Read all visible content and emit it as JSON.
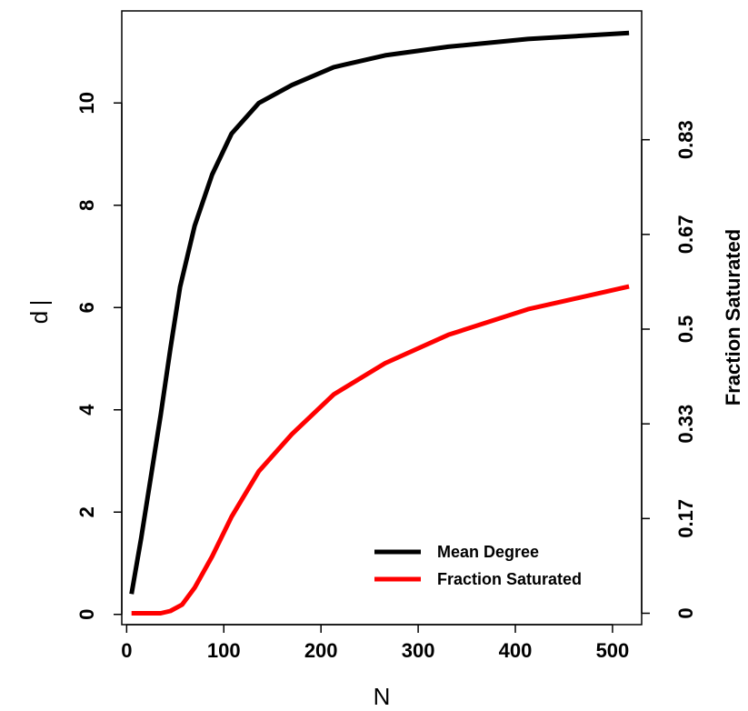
{
  "chart_data": {
    "type": "line",
    "xlabel": "N",
    "ylabel": "d",
    "ylabel_right": "Fraction Saturated",
    "xlim": [
      -5,
      530
    ],
    "ylim": [
      -0.2,
      11.8
    ],
    "ylim_right": [
      -0.02,
      1.06
    ],
    "x_ticks": [
      0,
      100,
      200,
      300,
      400,
      500
    ],
    "y_ticks": [
      0,
      2,
      4,
      6,
      8,
      10
    ],
    "y_ticks_right": [
      {
        "value": 0,
        "label": "0"
      },
      {
        "value": 0.1667,
        "label": "0.17"
      },
      {
        "value": 0.3333,
        "label": "0.33"
      },
      {
        "value": 0.5,
        "label": "0.5"
      },
      {
        "value": 0.6667,
        "label": "0.67"
      },
      {
        "value": 0.8333,
        "label": "0.83"
      }
    ],
    "grid": false,
    "legend_position": "bottom-right",
    "series": [
      {
        "name": "Mean Degree",
        "axis": "left",
        "color": "#000000",
        "x": [
          5,
          15,
          25,
          35,
          45,
          55,
          70,
          88,
          108,
          136,
          170,
          213,
          266,
          331,
          413,
          517
        ],
        "y": [
          0.4,
          1.5,
          2.7,
          3.9,
          5.2,
          6.4,
          7.6,
          8.6,
          9.4,
          10.0,
          10.35,
          10.7,
          10.93,
          11.1,
          11.25,
          11.37
        ]
      },
      {
        "name": "Fraction Saturated",
        "axis": "right",
        "color": "#ff0000",
        "x": [
          5,
          15,
          25,
          35,
          45,
          57,
          70,
          88,
          108,
          136,
          170,
          213,
          266,
          331,
          413,
          517
        ],
        "y": [
          0,
          0,
          0,
          0,
          0.004,
          0.015,
          0.045,
          0.1,
          0.17,
          0.25,
          0.315,
          0.385,
          0.44,
          0.49,
          0.535,
          0.575
        ]
      }
    ]
  }
}
